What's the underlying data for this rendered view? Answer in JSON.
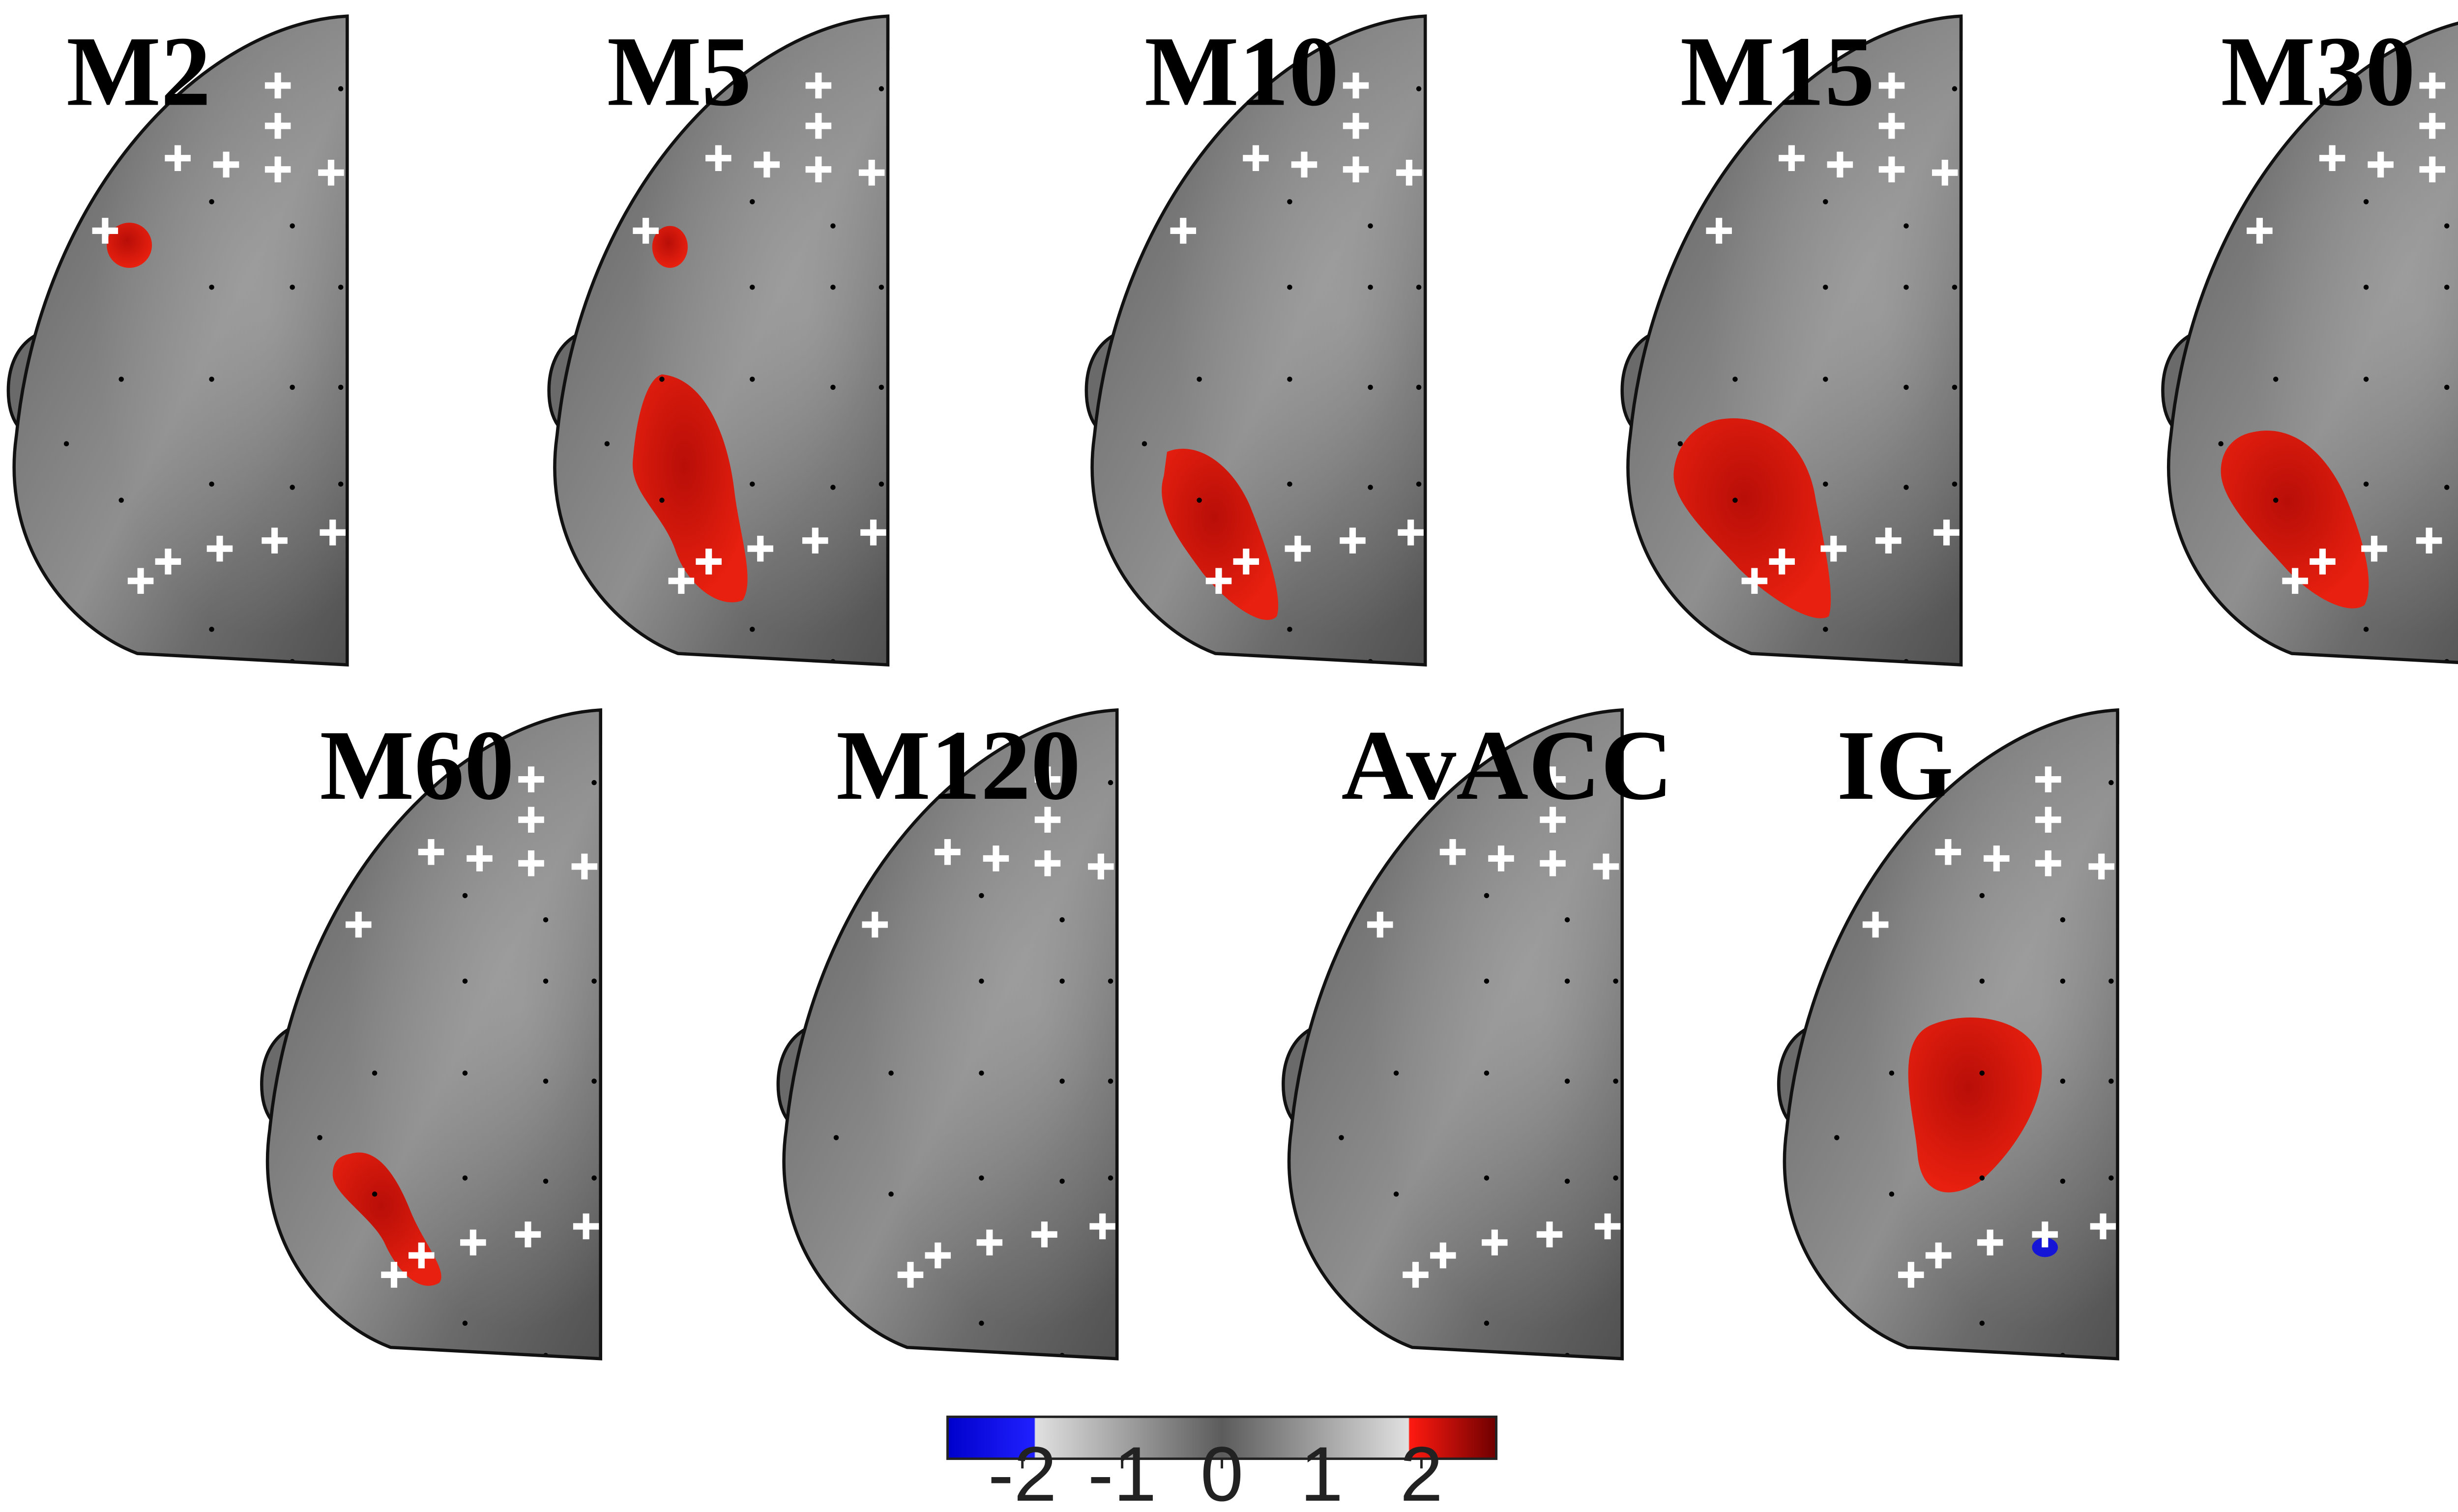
{
  "figure": {
    "panels": [
      {
        "id": "M2",
        "title": "M2",
        "blobs": [
          {
            "value": 2.5,
            "shape": "spot-frontal-lateral"
          }
        ]
      },
      {
        "id": "M5",
        "title": "M5",
        "blobs": [
          {
            "value": 2.5,
            "shape": "spot-frontal-lateral-small"
          },
          {
            "value": 2.5,
            "shape": "temporal-elongated"
          }
        ]
      },
      {
        "id": "M10",
        "title": "M10",
        "blobs": [
          {
            "value": 2.5,
            "shape": "parieto-occipital"
          }
        ]
      },
      {
        "id": "M15",
        "title": "M15",
        "blobs": [
          {
            "value": 2.5,
            "shape": "parieto-occipital-large"
          }
        ]
      },
      {
        "id": "M30",
        "title": "M30",
        "blobs": [
          {
            "value": 2.5,
            "shape": "parieto-occipital-medium"
          }
        ]
      },
      {
        "id": "M60",
        "title": "M60",
        "blobs": [
          {
            "value": 2.5,
            "shape": "occipital-small"
          }
        ]
      },
      {
        "id": "M120",
        "title": "M120",
        "blobs": []
      },
      {
        "id": "AvACC",
        "title": "AvACC",
        "blobs": []
      },
      {
        "id": "IG",
        "title": "IG",
        "blobs": [
          {
            "value": 2.5,
            "shape": "central"
          },
          {
            "value": -2.5,
            "shape": "occipital-dot"
          }
        ]
      }
    ]
  },
  "colorbar": {
    "min": -2.75,
    "max": 2.75,
    "threshold": 2,
    "ticks": [
      {
        "value": -2,
        "label": "-2"
      },
      {
        "value": -1,
        "label": "-1"
      },
      {
        "value": 0,
        "label": "0"
      },
      {
        "value": 1,
        "label": "1"
      },
      {
        "value": 2,
        "label": "2"
      }
    ],
    "colors": {
      "neg_high": "#0000e0",
      "neg_low": "#3a3aff",
      "near_thresh": "#d0d0d0",
      "mid": "#5e5e5e",
      "pos_low": "#ff1a10",
      "pos_high": "#7a0000"
    }
  },
  "style": {
    "blob_positive": "#e31a10",
    "blob_positive_dark": "#9e0c08",
    "blob_negative": "#1515d8",
    "head_base": "#6e6e6e",
    "outline": "#111111",
    "marker": "#ffffff"
  }
}
